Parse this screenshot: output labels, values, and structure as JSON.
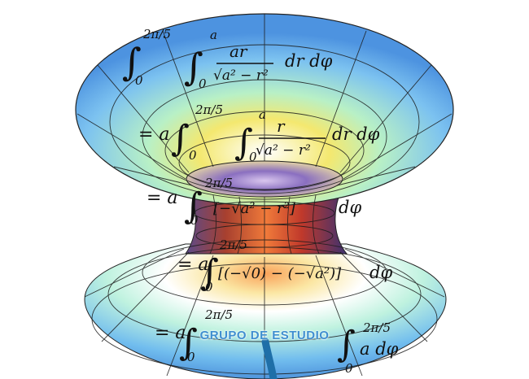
{
  "image": {
    "subject": "hyperboloid-like surface of revolution with handwritten integral calculation",
    "colors": {
      "outer": "#5aa9e8",
      "mid": "#9ff2d2",
      "warm": "#f6e46a",
      "hot": "#d2452b",
      "dark": "#3a2a57",
      "grid": "#1b1b1b"
    }
  },
  "formulas": {
    "line1": {
      "upper": "2π/5",
      "lower": "0",
      "upper2": "a",
      "lower2": "0",
      "numerator": "ar",
      "denominator": "√a² − r²",
      "tail": "dr dφ"
    },
    "line2": {
      "prefix": "= a",
      "upper": "2π/5",
      "lower": "0",
      "upper2": "a",
      "lower2": "0",
      "numerator": "r",
      "denominator": "√a² − r²",
      "tail": "dr dφ"
    },
    "line3": {
      "prefix": "= a",
      "upper": "2π/5",
      "lower": "0",
      "body": "[−√a² − r²]",
      "tail": "dφ"
    },
    "line4": {
      "prefix": "= a",
      "upper": "2π/5",
      "lower": "0",
      "body": "[(−√0) − (−√a²)]",
      "tail": "dφ"
    },
    "line5": {
      "prefix": "= a",
      "upper": "2π/5",
      "lower": "0",
      "right_upper": "2π/5",
      "right_lower": "0",
      "right_body": "a dφ"
    }
  },
  "caption": {
    "text": "GRUPO DE ESTUDIO"
  }
}
